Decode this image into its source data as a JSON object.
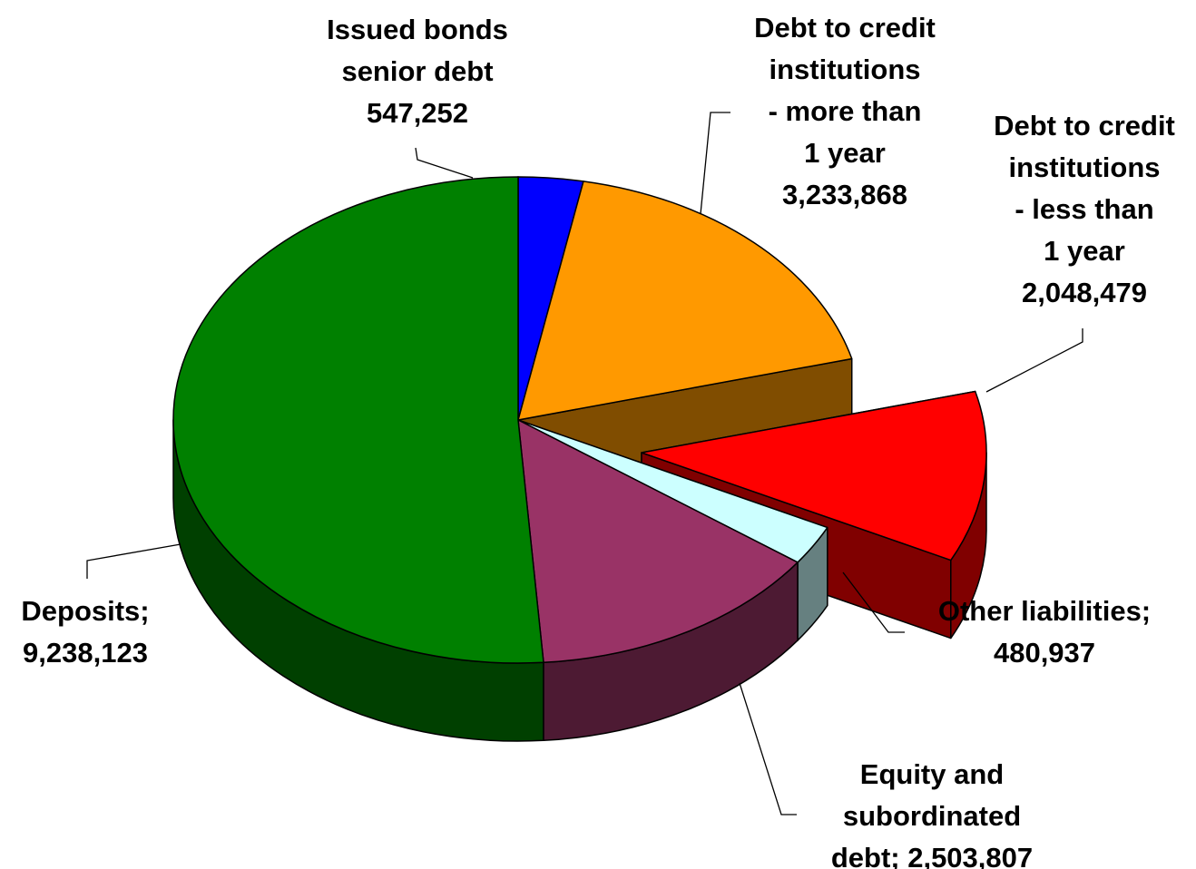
{
  "chart_data": {
    "type": "pie",
    "style": "3d-exploded",
    "title": "",
    "legend": "none",
    "slices": [
      {
        "name": "Issued bonds senior debt",
        "value": 547252,
        "color": "#0000ff",
        "exploded": false,
        "label_lines": [
          "Issued bonds",
          "senior debt",
          "547,252"
        ]
      },
      {
        "name": "Debt to credit institutions - more than 1 year",
        "value": 3233868,
        "color": "#ff9900",
        "exploded": false,
        "label_lines": [
          "Debt to credit",
          "institutions",
          "- more than",
          "1 year",
          "3,233,868"
        ]
      },
      {
        "name": "Debt to credit institutions - less than 1 year",
        "value": 2048479,
        "color": "#ff0000",
        "exploded": true,
        "label_lines": [
          "Debt to credit",
          "institutions",
          "- less than",
          "1 year",
          "2,048,479"
        ]
      },
      {
        "name": "Other liabilities",
        "value": 480937,
        "color": "#ccffff",
        "exploded": false,
        "label_lines": [
          "Other liabilities;",
          "480,937"
        ]
      },
      {
        "name": "Equity and subordinated debt",
        "value": 2503807,
        "color": "#993366",
        "exploded": false,
        "label_lines": [
          "Equity and",
          "subordinated",
          "debt; 2,503,807"
        ]
      },
      {
        "name": "Deposits",
        "value": 9238123,
        "color": "#008000",
        "exploded": false,
        "label_lines": [
          "Deposits;",
          "9,238,123"
        ]
      }
    ]
  }
}
